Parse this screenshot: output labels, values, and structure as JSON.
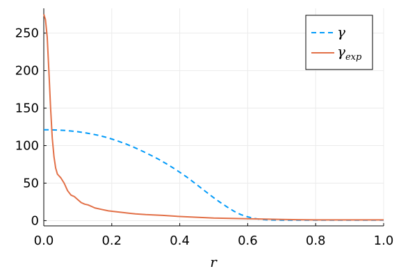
{
  "chart_data": {
    "type": "line",
    "title": "",
    "xlabel": "r",
    "ylabel": "",
    "xlim": [
      0,
      1
    ],
    "ylim": [
      -7,
      283
    ],
    "xticks": [
      0,
      0.2,
      0.4,
      0.6,
      0.8,
      1
    ],
    "xtick_labels": [
      "0.0",
      "0.2",
      "0.4",
      "0.6",
      "0.8",
      "1.0"
    ],
    "yticks": [
      0,
      50,
      100,
      150,
      200,
      250
    ],
    "ytick_labels": [
      "0",
      "50",
      "100",
      "150",
      "200",
      "250"
    ],
    "grid": true,
    "legend_position": "top-right",
    "series": [
      {
        "name": "γ",
        "style": "dashed",
        "color": "#009af9",
        "x": [
          0,
          0.02,
          0.04,
          0.06,
          0.08,
          0.1,
          0.12,
          0.14,
          0.16,
          0.18,
          0.2,
          0.22,
          0.24,
          0.26,
          0.28,
          0.3,
          0.32,
          0.34,
          0.36,
          0.38,
          0.4,
          0.42,
          0.44,
          0.46,
          0.48,
          0.5,
          0.52,
          0.54,
          0.56,
          0.58,
          0.6,
          0.62,
          0.64,
          0.66,
          0.68,
          0.7,
          0.75,
          0.8,
          0.85,
          0.9,
          0.95,
          1.0
        ],
        "y": [
          121,
          121,
          120.8,
          120.3,
          119.5,
          118.5,
          117.2,
          115.6,
          113.8,
          111.5,
          108.8,
          105.8,
          102.5,
          98.8,
          94.8,
          90.5,
          86,
          81.2,
          76,
          70.5,
          64.5,
          58.3,
          51.5,
          44.5,
          37.5,
          30.5,
          24,
          18,
          12.5,
          8,
          5,
          2.8,
          1.5,
          1.0,
          0.8,
          0.7,
          0.6,
          0.6,
          0.6,
          0.6,
          0.6,
          0.6
        ]
      },
      {
        "name": "γ_exp",
        "style": "solid",
        "color": "#e26f46",
        "x": [
          0,
          0.005,
          0.01,
          0.015,
          0.02,
          0.025,
          0.03,
          0.035,
          0.04,
          0.05,
          0.06,
          0.07,
          0.08,
          0.09,
          0.1,
          0.11,
          0.12,
          0.13,
          0.14,
          0.15,
          0.17,
          0.19,
          0.21,
          0.23,
          0.25,
          0.27,
          0.3,
          0.35,
          0.4,
          0.45,
          0.5,
          0.55,
          0.6,
          0.65,
          0.7,
          0.75,
          0.8,
          0.9,
          1.0
        ],
        "y": [
          275,
          268,
          245,
          200,
          150,
          110,
          85,
          70,
          62,
          57,
          50,
          40,
          34,
          32,
          28,
          24,
          22,
          21,
          19,
          17,
          15,
          13,
          12,
          11,
          10,
          9,
          8,
          7,
          5.5,
          4.5,
          3.5,
          3,
          2.5,
          2,
          1.5,
          1.2,
          1,
          1,
          1
        ]
      }
    ]
  },
  "legend": {
    "entries": [
      {
        "base": "γ",
        "sub": ""
      },
      {
        "base": "γ",
        "sub": "exp"
      }
    ]
  }
}
